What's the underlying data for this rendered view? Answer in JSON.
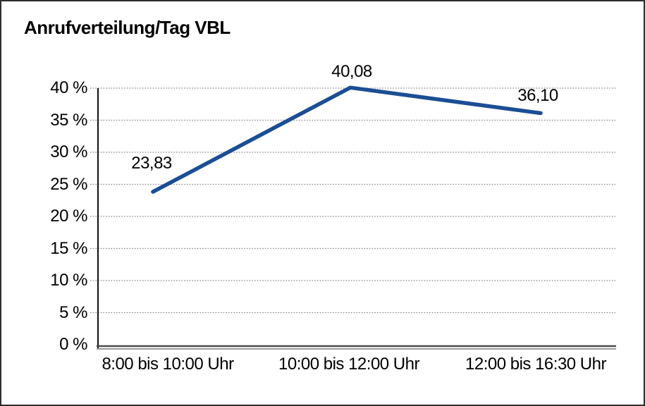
{
  "window": {
    "background": "#ffffff",
    "border_color": "#2e2e2e"
  },
  "chart_data": {
    "type": "line",
    "title": "Anrufverteilung/Tag VBL",
    "categories": [
      "8:00 bis 10:00 Uhr",
      "10:00 bis 12:00 Uhr",
      "12:00 bis 16:30 Uhr"
    ],
    "values": [
      23.83,
      40.08,
      36.1
    ],
    "point_labels": [
      "23,83",
      "40,08",
      "36,10"
    ],
    "yticks": [
      "40 %",
      "35 %",
      "30 %",
      "25 %",
      "20 %",
      "15 %",
      "10 %",
      "5 %",
      "0 %"
    ],
    "ylim": [
      0,
      40
    ],
    "ytick_step": 5,
    "xlabel": "",
    "ylabel": "",
    "legend": "none",
    "grid": "horizontal-dotted",
    "line_color": "#1b4e94",
    "grid_color": "#808080",
    "axis_color": "#1a1a1a",
    "baseline_dark_color": "#4a4a4a",
    "baseline_light_color": "#9c9c9c",
    "text_color": "#000000"
  }
}
